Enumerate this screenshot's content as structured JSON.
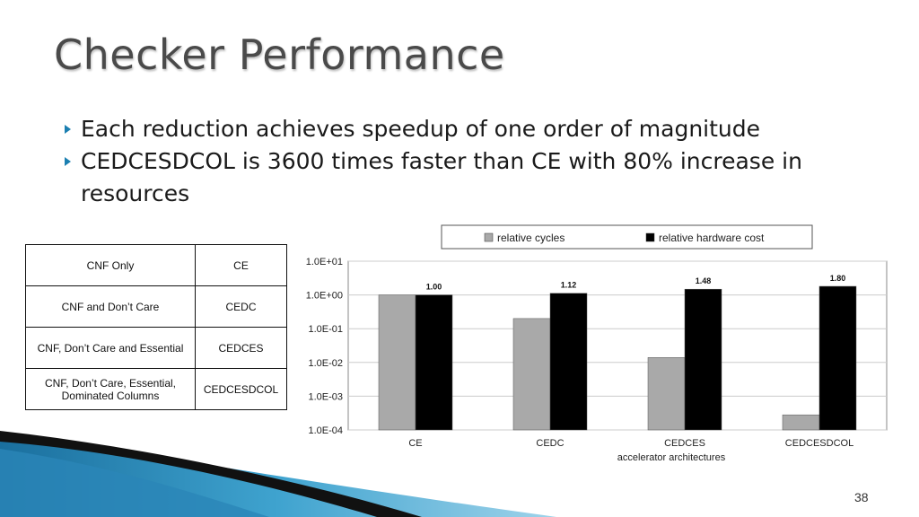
{
  "slide": {
    "title": "Checker Performance",
    "bullets": [
      "Each reduction achieves speedup of one order of magnitude",
      "CEDCESDCOL is 3600 times faster than CE with 80% increase in resources"
    ],
    "number": "38"
  },
  "table": {
    "rows": [
      {
        "method": "CNF Only",
        "arch": "CE"
      },
      {
        "method": "CNF and Don’t Care",
        "arch": "CEDC"
      },
      {
        "method": "CNF, Don’t Care and Essential",
        "arch": "CEDCES"
      },
      {
        "method": "CNF, Don’t Care, Essential, Dominated Columns",
        "arch": "CEDCESDCOL"
      }
    ]
  },
  "chart_data": {
    "type": "bar",
    "scale": "log",
    "categories": [
      "CE",
      "CEDC",
      "CEDCES",
      "CEDCESDCOL"
    ],
    "xlabel": "accelerator architectures",
    "ylabel": "",
    "ylim": [
      0.0001,
      10
    ],
    "yticks": [
      "1.0E+01",
      "1.0E+00",
      "1.0E-01",
      "1.0E-02",
      "1.0E-03",
      "1.0E-04"
    ],
    "grid": true,
    "legend_position": "top",
    "series": [
      {
        "name": "relative cycles",
        "color": "#a9a9a9",
        "values": [
          1.0,
          0.2,
          0.014,
          0.00028
        ]
      },
      {
        "name": "relative hardware cost",
        "color": "#000000",
        "values": [
          1.0,
          1.12,
          1.48,
          1.8
        ]
      }
    ],
    "data_labels": [
      "1.00",
      "1.12",
      "1.48",
      "1.80"
    ]
  },
  "colors": {
    "bullet": "#1b7fb1",
    "title": "#4a4a4a"
  }
}
